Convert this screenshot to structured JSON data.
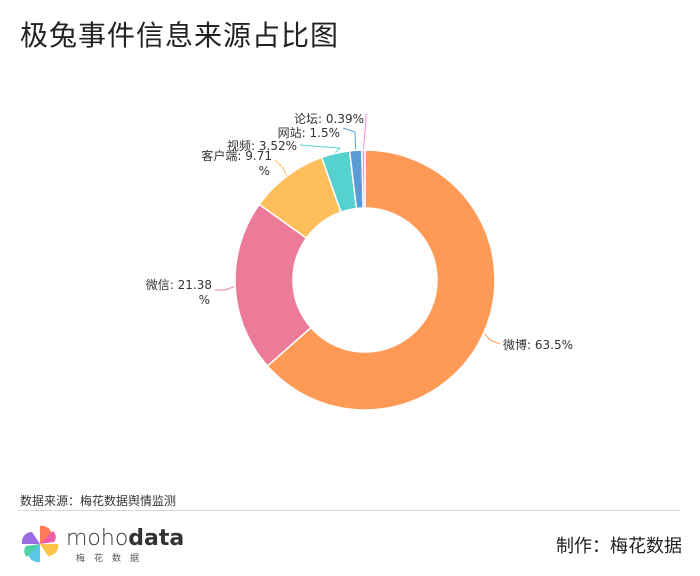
{
  "title": "极兔事件信息来源占比图",
  "chart_data": {
    "type": "pie",
    "donut": true,
    "title": "极兔事件信息来源占比图",
    "slices": [
      {
        "name": "微博",
        "value": 63.5,
        "label": "微博: 63.5%",
        "color": "#ff9a56"
      },
      {
        "name": "微信",
        "value": 21.38,
        "label": "微信: 21.38%",
        "color": "#ec7b9a"
      },
      {
        "name": "客户端",
        "value": 9.71,
        "label": "客户端: 9.71%",
        "color": "#ffbe5c"
      },
      {
        "name": "视频",
        "value": 3.52,
        "label": "视频: 3.52%",
        "color": "#55d1d0"
      },
      {
        "name": "网站",
        "value": 1.5,
        "label": "网站: 1.5%",
        "color": "#5b9bd5"
      },
      {
        "name": "论坛",
        "value": 0.39,
        "label": "论坛: 0.39%",
        "color": "#ff8ad8"
      }
    ]
  },
  "footer": {
    "source": "数据来源：梅花数据舆情监测",
    "brand_light": "moho",
    "brand_bold": "data",
    "brand_sub": "梅花数据",
    "maker": "制作：梅花数据"
  }
}
